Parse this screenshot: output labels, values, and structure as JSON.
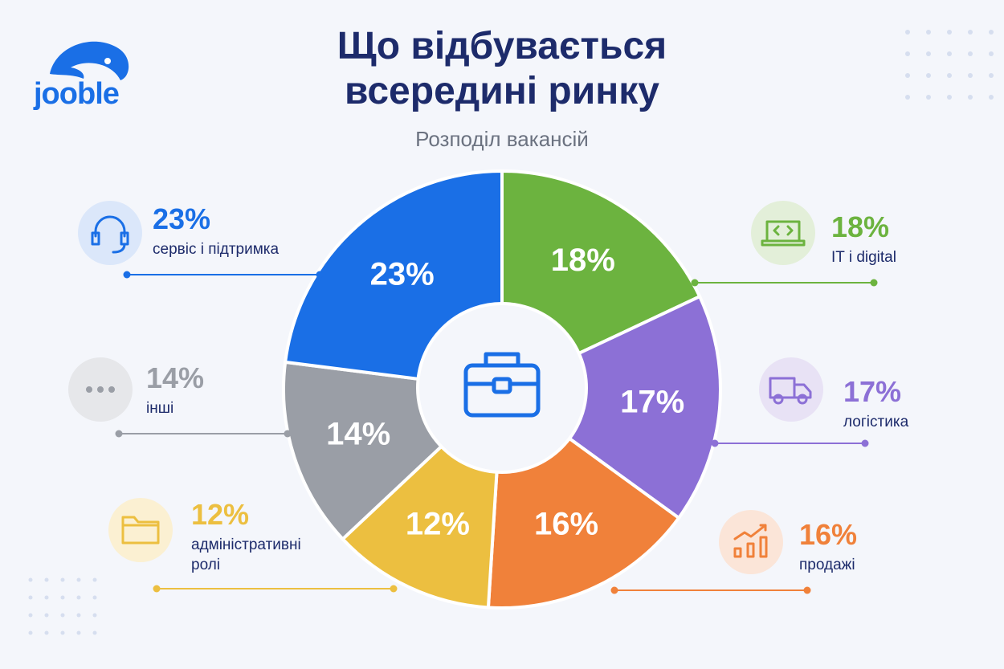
{
  "logo": "jooble",
  "chart_data": {
    "type": "pie",
    "title": "Що відбувається всередині ринку",
    "subtitle": "Розподіл вакансій",
    "categories": [
      "IT і digital",
      "логістика",
      "продажі",
      "адміністративні ролі",
      "інші",
      "сервіс і підтримка"
    ],
    "values": [
      18,
      17,
      16,
      12,
      14,
      23
    ],
    "value_labels": [
      "18%",
      "17%",
      "16%",
      "12%",
      "14%",
      "23%"
    ],
    "colors": [
      "#6cb33f",
      "#8c70d6",
      "#f0813a",
      "#ecbf40",
      "#9a9ea6",
      "#1a6fe6"
    ]
  }
}
